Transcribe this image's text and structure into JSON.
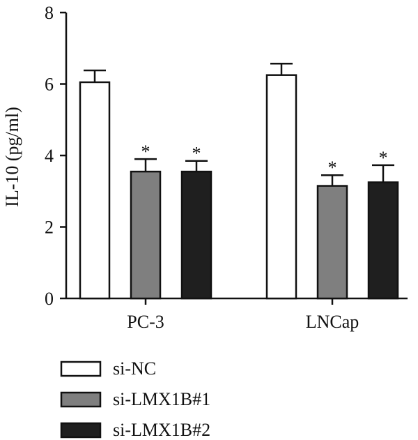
{
  "chart_data": {
    "type": "bar",
    "title": "",
    "xlabel": "",
    "ylabel": "IL-10 (pg/ml)",
    "ylim": [
      0,
      8
    ],
    "yticks": [
      0,
      2,
      4,
      6,
      8
    ],
    "categories": [
      "PC-3",
      "LNCap"
    ],
    "series": [
      {
        "name": "si-NC",
        "values": [
          6.05,
          6.25
        ],
        "errors": [
          0.33,
          0.32
        ],
        "significance": [
          "",
          ""
        ],
        "color": "#ffffff"
      },
      {
        "name": "si-LMX1B#1",
        "values": [
          3.55,
          3.15
        ],
        "errors": [
          0.35,
          0.3
        ],
        "significance": [
          "*",
          "*"
        ],
        "color": "#7f7f7f"
      },
      {
        "name": "si-LMX1B#2",
        "values": [
          3.55,
          3.25
        ],
        "errors": [
          0.3,
          0.48
        ],
        "significance": [
          "*",
          "*"
        ],
        "color": "#1f1f1f"
      }
    ],
    "legend_position": "bottom-left",
    "grid": false
  }
}
